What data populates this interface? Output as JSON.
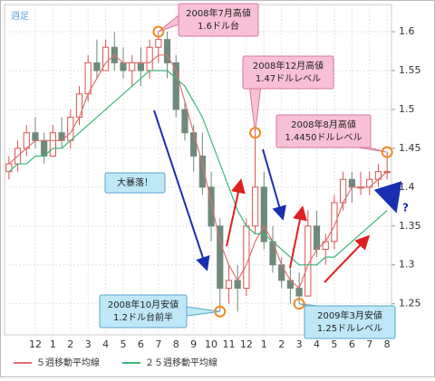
{
  "chart_data": {
    "type": "candlestick",
    "period_label": "週足",
    "categories": [
      null,
      null,
      null,
      "12",
      null,
      "1",
      null,
      "2",
      null,
      "3",
      null,
      "4",
      null,
      "5",
      null,
      "6",
      null,
      "7",
      null,
      "8",
      null,
      "9",
      null,
      "10",
      null,
      "11",
      null,
      "12",
      null,
      "1",
      null,
      "2",
      null,
      "3",
      null,
      "4",
      null,
      "5",
      null,
      "6",
      null,
      "7",
      null,
      "8"
    ],
    "open": [
      1.42,
      1.43,
      1.45,
      1.47,
      1.46,
      1.44,
      1.47,
      1.46,
      1.49,
      1.52,
      1.56,
      1.55,
      1.58,
      1.56,
      1.55,
      1.56,
      1.55,
      1.58,
      1.59,
      1.56,
      1.5,
      1.47,
      1.44,
      1.4,
      1.35,
      1.27,
      1.28,
      1.27,
      1.35,
      1.4,
      1.33,
      1.3,
      1.28,
      1.27,
      1.26,
      1.35,
      1.32,
      1.33,
      1.38,
      1.41,
      1.4,
      1.4,
      1.41,
      1.42
    ],
    "high": [
      1.44,
      1.46,
      1.48,
      1.49,
      1.47,
      1.48,
      1.49,
      1.5,
      1.53,
      1.57,
      1.59,
      1.59,
      1.6,
      1.58,
      1.57,
      1.58,
      1.59,
      1.6,
      1.6,
      1.57,
      1.51,
      1.48,
      1.47,
      1.42,
      1.36,
      1.3,
      1.3,
      1.36,
      1.47,
      1.42,
      1.35,
      1.31,
      1.3,
      1.29,
      1.37,
      1.37,
      1.34,
      1.39,
      1.42,
      1.42,
      1.42,
      1.42,
      1.43,
      1.445
    ],
    "low": [
      1.41,
      1.42,
      1.44,
      1.45,
      1.43,
      1.44,
      1.45,
      1.45,
      1.48,
      1.51,
      1.54,
      1.55,
      1.55,
      1.54,
      1.53,
      1.53,
      1.54,
      1.56,
      1.54,
      1.49,
      1.46,
      1.42,
      1.39,
      1.33,
      1.24,
      1.25,
      1.24,
      1.26,
      1.34,
      1.32,
      1.29,
      1.27,
      1.25,
      1.25,
      1.26,
      1.31,
      1.3,
      1.32,
      1.37,
      1.38,
      1.39,
      1.39,
      1.4,
      1.41
    ],
    "close": [
      1.43,
      1.45,
      1.47,
      1.46,
      1.44,
      1.47,
      1.46,
      1.49,
      1.52,
      1.56,
      1.55,
      1.58,
      1.56,
      1.55,
      1.56,
      1.55,
      1.58,
      1.59,
      1.56,
      1.5,
      1.47,
      1.44,
      1.4,
      1.35,
      1.27,
      1.28,
      1.27,
      1.35,
      1.4,
      1.33,
      1.3,
      1.28,
      1.27,
      1.26,
      1.35,
      1.32,
      1.33,
      1.38,
      1.41,
      1.4,
      1.4,
      1.41,
      1.42,
      1.42
    ],
    "up_color": "#d9534f",
    "down_color": "#6f8a7a",
    "series": [
      {
        "name": "５週移動平均線",
        "color": "#e07070",
        "values": [
          1.43,
          1.44,
          1.45,
          1.46,
          1.46,
          1.46,
          1.46,
          1.47,
          1.49,
          1.52,
          1.54,
          1.56,
          1.57,
          1.56,
          1.56,
          1.56,
          1.56,
          1.57,
          1.57,
          1.55,
          1.51,
          1.47,
          1.43,
          1.38,
          1.33,
          1.3,
          1.28,
          1.3,
          1.33,
          1.35,
          1.33,
          1.3,
          1.28,
          1.27,
          1.3,
          1.32,
          1.33,
          1.35,
          1.38,
          1.4,
          1.4,
          1.4,
          1.41,
          1.42
        ]
      },
      {
        "name": "２５週移動平均線",
        "color": "#3cb878",
        "values": [
          1.42,
          1.43,
          1.43,
          1.44,
          1.44,
          1.45,
          1.45,
          1.46,
          1.47,
          1.48,
          1.49,
          1.5,
          1.51,
          1.52,
          1.53,
          1.54,
          1.55,
          1.55,
          1.55,
          1.54,
          1.53,
          1.51,
          1.49,
          1.46,
          1.43,
          1.4,
          1.37,
          1.35,
          1.34,
          1.34,
          1.33,
          1.32,
          1.31,
          1.3,
          1.3,
          1.3,
          1.31,
          1.31,
          1.32,
          1.33,
          1.34,
          1.35,
          1.36,
          1.37
        ]
      }
    ],
    "ylim": [
      1.21,
      1.635
    ],
    "yticks": [
      1.25,
      1.3,
      1.35,
      1.4,
      1.45,
      1.5,
      1.55,
      1.6
    ],
    "grid": true,
    "annotations": [
      {
        "lines": [
          "2008年7月高値",
          "1.6ドル台"
        ]
      },
      {
        "lines": [
          "2008年12月高値",
          "1.47ドルレベル"
        ]
      },
      {
        "lines": [
          "2008年8月高値",
          "1.4450ドルレベル"
        ]
      },
      {
        "lines": [
          "大暴落！"
        ]
      },
      {
        "lines": [
          "2008年10月安値",
          "1.2ドル台前半"
        ]
      },
      {
        "lines": [
          "2009年3月安値",
          "1.25ドルレベル"
        ]
      }
    ],
    "question_mark": "?"
  }
}
